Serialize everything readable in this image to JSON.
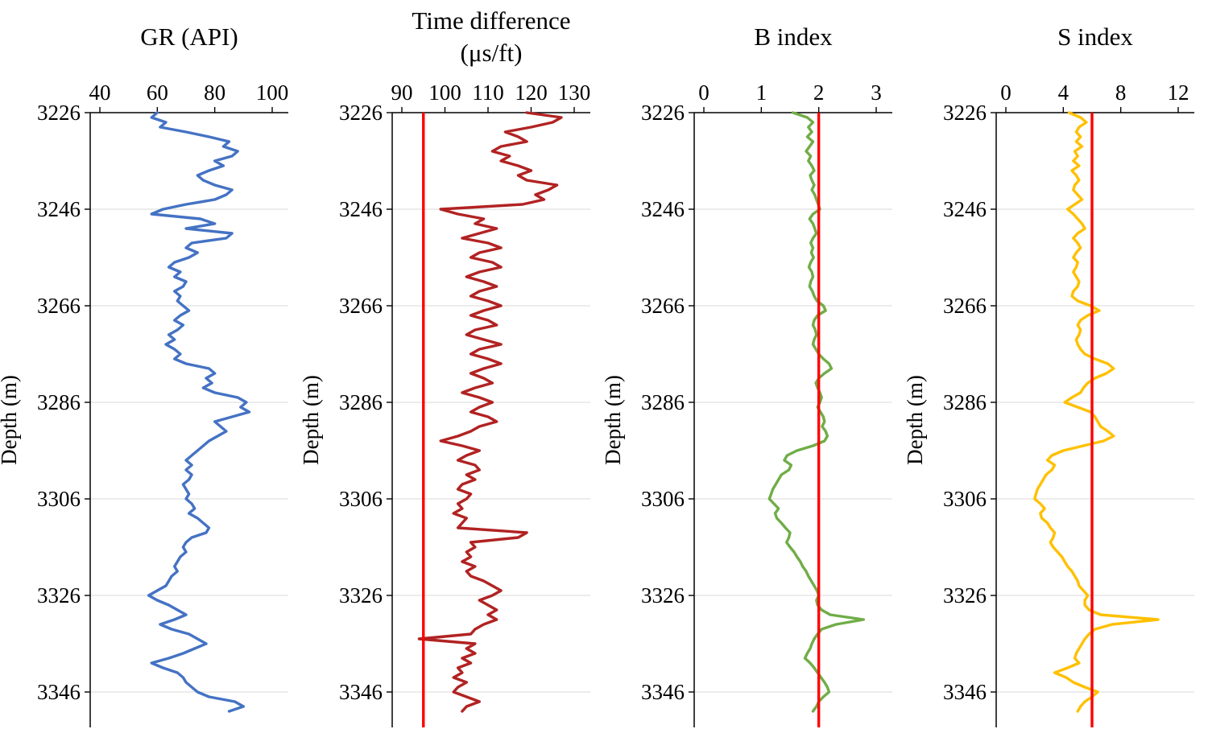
{
  "figure": {
    "background": "#FFFFFF",
    "description": "Four side-by-side well log depth tracks"
  },
  "styles": {
    "grid_color": "#D9D9D9",
    "axis_color": "#000000",
    "ref_color": "#FF0000",
    "text_color": "#000000"
  },
  "chart_data": [
    {
      "id": "gr",
      "type": "line",
      "title": "GR (API)",
      "title_lines": [
        "GR (API)"
      ],
      "xlabel": "",
      "ylabel": "Depth (m)",
      "x_ticks": [
        40,
        60,
        80,
        100
      ],
      "x_range": [
        40,
        100
      ],
      "depth_ticks": [
        3226,
        3246,
        3266,
        3286,
        3306,
        3326,
        3346
      ],
      "depth_range": [
        3226,
        3350
      ],
      "depth_start": 3226,
      "depth_step": 1,
      "line_color": "#4472C4",
      "ref_line": null,
      "grid": true,
      "legend": "none",
      "values": [
        60,
        58,
        63,
        61,
        70,
        78,
        85,
        83,
        88,
        86,
        80,
        83,
        78,
        74,
        76,
        80,
        86,
        84,
        80,
        70,
        62,
        58,
        75,
        80,
        70,
        86,
        84,
        72,
        70,
        74,
        71,
        66,
        64,
        68,
        66,
        70,
        69,
        66,
        68,
        67,
        69,
        71,
        68,
        66,
        69,
        67,
        64,
        66,
        63,
        66,
        68,
        66,
        70,
        78,
        80,
        77,
        79,
        76,
        80,
        88,
        91,
        89,
        92,
        86,
        80,
        82,
        84,
        81,
        78,
        76,
        74,
        72,
        70,
        72,
        70,
        72,
        71,
        69,
        70,
        71,
        70,
        72,
        73,
        71,
        74,
        76,
        78,
        77,
        72,
        70,
        69,
        70,
        68,
        67,
        66,
        67,
        65,
        64,
        63,
        60,
        57,
        60,
        64,
        67,
        70,
        66,
        61,
        65,
        71,
        74,
        77,
        73,
        69,
        64,
        58,
        62,
        67,
        69,
        70,
        72,
        74,
        78,
        87,
        90,
        85
      ]
    },
    {
      "id": "time_difference",
      "type": "line",
      "title": "Time difference (μs/ft)",
      "title_lines": [
        "Time difference",
        "(μs/ft)"
      ],
      "xlabel": "",
      "ylabel": "Depth (m)",
      "x_ticks": [
        90,
        100,
        110,
        120,
        130
      ],
      "x_range": [
        90,
        130
      ],
      "depth_ticks": [
        3226,
        3246,
        3266,
        3286,
        3306,
        3326,
        3346
      ],
      "depth_range": [
        3226,
        3350
      ],
      "depth_start": 3226,
      "depth_step": 1,
      "line_color": "#B22222",
      "ref_line": 95,
      "grid": true,
      "legend": "none",
      "values": [
        119,
        127,
        125,
        120,
        114,
        117,
        119,
        113,
        111,
        115,
        113,
        117,
        120,
        117,
        119,
        126,
        124,
        121,
        123,
        118,
        99,
        103,
        109,
        107,
        112,
        108,
        104,
        110,
        113,
        108,
        106,
        111,
        113,
        108,
        105,
        109,
        112,
        108,
        106,
        110,
        113,
        109,
        106,
        110,
        112,
        107,
        105,
        109,
        113,
        108,
        106,
        110,
        113,
        109,
        106,
        109,
        111,
        107,
        104,
        108,
        111,
        108,
        106,
        110,
        112,
        108,
        106,
        103,
        99,
        104,
        108,
        105,
        103,
        107,
        108,
        105,
        107,
        104,
        103,
        106,
        105,
        103,
        104,
        102,
        105,
        104,
        103,
        119,
        117,
        106,
        107,
        105,
        106,
        104,
        107,
        105,
        106,
        109,
        111,
        113,
        111,
        108,
        110,
        112,
        110,
        112,
        109,
        107,
        106,
        94,
        107,
        105,
        107,
        104,
        106,
        103,
        104,
        102,
        105,
        103,
        102,
        105,
        108,
        105,
        104
      ]
    },
    {
      "id": "b_index",
      "type": "line",
      "title": "B index",
      "title_lines": [
        "B index"
      ],
      "xlabel": "",
      "ylabel": "Depth (m)",
      "x_ticks": [
        0,
        1,
        2,
        3
      ],
      "x_range": [
        0,
        3
      ],
      "depth_ticks": [
        3226,
        3246,
        3266,
        3286,
        3306,
        3326,
        3346
      ],
      "depth_range": [
        3226,
        3350
      ],
      "depth_start": 3226,
      "depth_step": 1,
      "line_color": "#70AD47",
      "ref_line": 2,
      "grid": true,
      "legend": "none",
      "values": [
        1.55,
        1.8,
        1.9,
        1.82,
        1.88,
        1.8,
        1.9,
        1.84,
        1.78,
        1.86,
        1.82,
        1.88,
        1.92,
        1.85,
        1.88,
        1.92,
        1.88,
        1.93,
        1.96,
        1.99,
        2.02,
        1.9,
        1.84,
        1.9,
        1.93,
        1.96,
        1.9,
        1.86,
        1.9,
        1.87,
        1.91,
        1.86,
        1.83,
        1.88,
        1.9,
        1.86,
        1.84,
        1.89,
        1.92,
        1.97,
        2.08,
        2.12,
        1.98,
        1.92,
        1.9,
        1.94,
        1.96,
        1.92,
        1.9,
        1.95,
        2.0,
        2.08,
        2.18,
        2.22,
        2.1,
        2.0,
        1.95,
        1.98,
        2.02,
        2.05,
        2.02,
        1.98,
        2.03,
        2.08,
        2.1,
        2.06,
        2.12,
        2.15,
        2.1,
        1.9,
        1.62,
        1.45,
        1.4,
        1.52,
        1.48,
        1.35,
        1.3,
        1.25,
        1.2,
        1.17,
        1.14,
        1.22,
        1.3,
        1.24,
        1.27,
        1.35,
        1.42,
        1.5,
        1.48,
        1.44,
        1.5,
        1.57,
        1.62,
        1.68,
        1.72,
        1.78,
        1.82,
        1.87,
        1.92,
        1.97,
        2.0,
        1.96,
        1.98,
        2.05,
        2.2,
        2.78,
        2.3,
        2.05,
        1.98,
        1.92,
        1.88,
        1.85,
        1.8,
        1.76,
        1.85,
        1.92,
        1.98,
        2.04,
        2.1,
        2.15,
        2.18,
        2.08,
        2.0,
        1.96,
        1.9
      ]
    },
    {
      "id": "s_index",
      "type": "line",
      "title": "S index",
      "title_lines": [
        "S index"
      ],
      "xlabel": "",
      "ylabel": "Depth (m)",
      "x_ticks": [
        0,
        4,
        8,
        12
      ],
      "x_range": [
        0,
        12
      ],
      "depth_ticks": [
        3226,
        3246,
        3266,
        3286,
        3306,
        3326,
        3346
      ],
      "depth_range": [
        3226,
        3350
      ],
      "depth_start": 3226,
      "depth_step": 1,
      "line_color": "#FFC000",
      "ref_line": 6,
      "grid": true,
      "legend": "none",
      "values": [
        4.4,
        5.2,
        5.6,
        5.1,
        4.9,
        5.2,
        4.9,
        5.3,
        4.8,
        5.0,
        4.7,
        5.1,
        4.6,
        4.9,
        5.1,
        4.8,
        4.7,
        5.0,
        5.3,
        4.8,
        4.3,
        4.7,
        5.0,
        5.3,
        5.5,
        5.0,
        4.7,
        5.0,
        5.2,
        4.9,
        4.7,
        5.0,
        4.9,
        4.7,
        4.9,
        5.1,
        5.0,
        4.7,
        4.6,
        5.0,
        5.9,
        6.5,
        5.7,
        5.2,
        5.0,
        5.2,
        5.1,
        4.9,
        5.0,
        5.2,
        5.5,
        6.2,
        7.1,
        7.5,
        7.0,
        6.2,
        5.7,
        5.4,
        5.2,
        4.6,
        4.1,
        5.0,
        5.9,
        6.2,
        6.4,
        6.6,
        7.1,
        7.5,
        6.8,
        5.4,
        4.0,
        3.2,
        2.9,
        3.4,
        3.2,
        2.8,
        2.6,
        2.4,
        2.2,
        2.1,
        2.0,
        2.4,
        2.7,
        2.4,
        2.5,
        2.9,
        3.1,
        3.4,
        3.3,
        3.1,
        3.3,
        3.6,
        3.9,
        4.1,
        4.3,
        4.6,
        4.8,
        5.0,
        5.1,
        5.4,
        5.7,
        5.5,
        5.5,
        5.8,
        6.6,
        10.6,
        7.4,
        6.2,
        5.8,
        5.5,
        5.3,
        5.1,
        4.9,
        4.8,
        5.1,
        4.3,
        3.4,
        4.2,
        4.7,
        5.5,
        6.4,
        6.0,
        5.5,
        5.2,
        5.0
      ]
    }
  ]
}
